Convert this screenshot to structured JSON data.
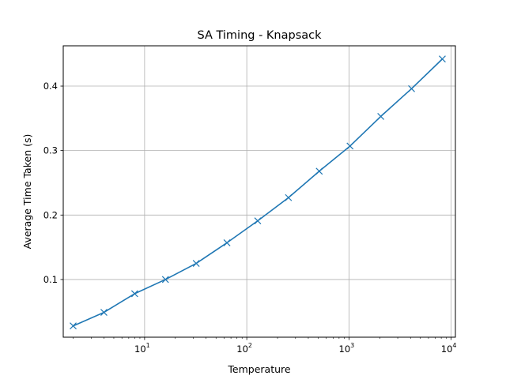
{
  "chart_data": {
    "type": "line",
    "title": "SA Timing - Knapsack",
    "xlabel": "Temperature",
    "ylabel": "Average Time Taken (s)",
    "xscale": "log",
    "xlim": [
      1.6,
      11000
    ],
    "ylim": [
      0.0105,
      0.4625
    ],
    "grid": true,
    "xticks": [
      {
        "value": 10,
        "base": "10",
        "exp": "1"
      },
      {
        "value": 100,
        "base": "10",
        "exp": "2"
      },
      {
        "value": 1000,
        "base": "10",
        "exp": "3"
      },
      {
        "value": 10000,
        "base": "10",
        "exp": "4"
      }
    ],
    "yticks": [
      {
        "value": 0.1,
        "label": "0.1"
      },
      {
        "value": 0.2,
        "label": "0.2"
      },
      {
        "value": 0.3,
        "label": "0.3"
      },
      {
        "value": 0.4,
        "label": "0.4"
      }
    ],
    "series": [
      {
        "color": "#1f77b4",
        "marker": "x",
        "x": [
          2,
          4,
          8,
          16,
          32,
          64,
          128,
          256,
          512,
          1024,
          2048,
          4096,
          8192
        ],
        "y": [
          0.028,
          0.049,
          0.078,
          0.1,
          0.125,
          0.157,
          0.191,
          0.227,
          0.268,
          0.307,
          0.353,
          0.396,
          0.442
        ]
      }
    ]
  }
}
